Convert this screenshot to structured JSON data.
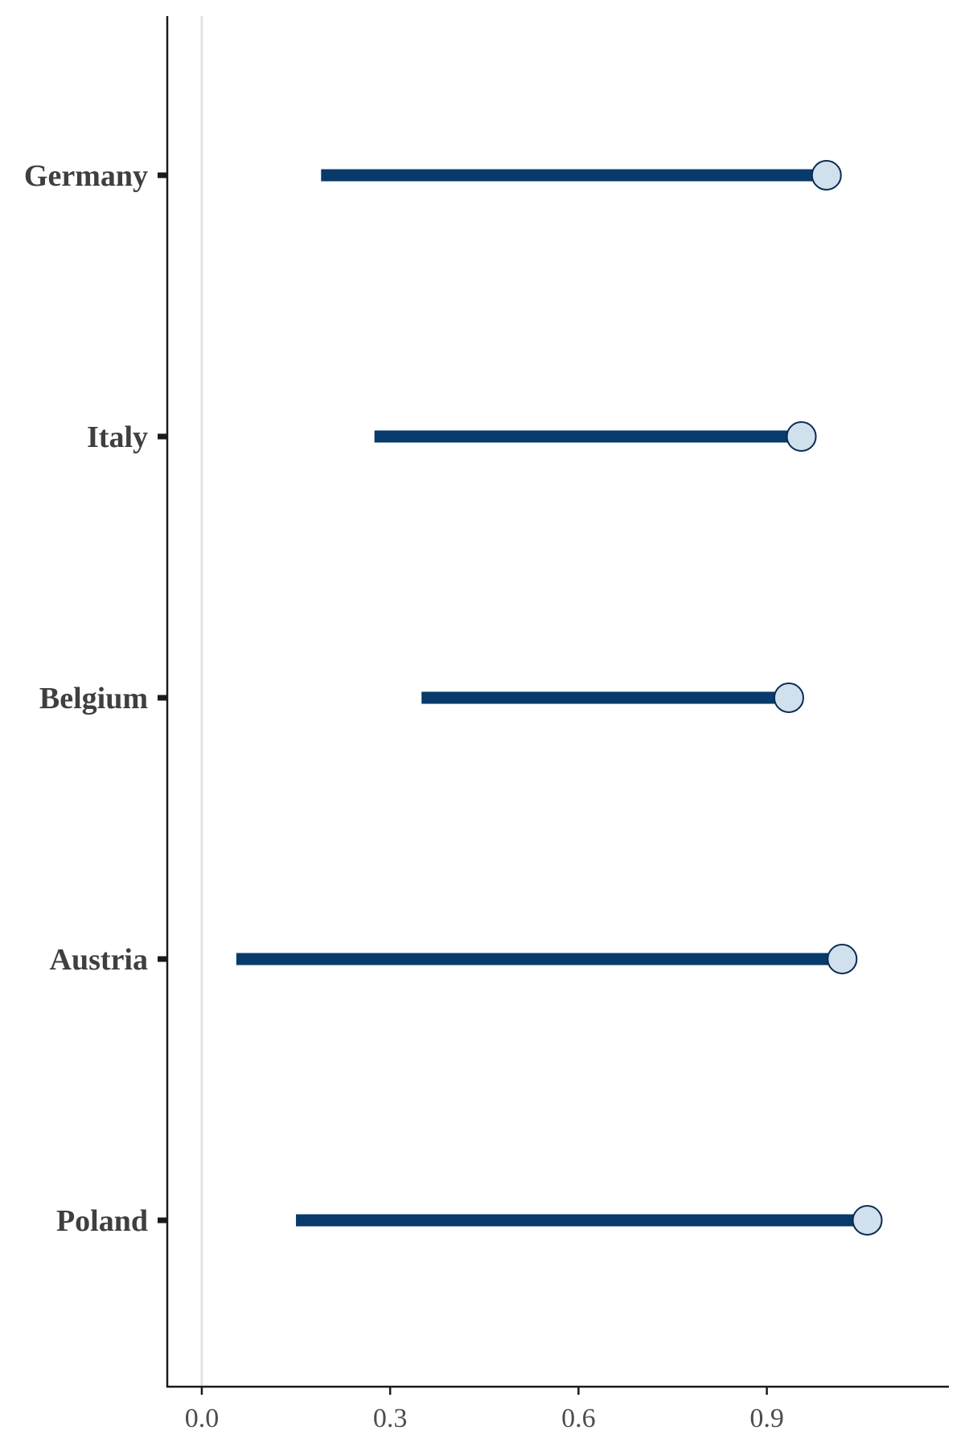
{
  "chart_data": {
    "type": "dumbbell",
    "title": "",
    "xlabel": "",
    "ylabel": "",
    "categories": [
      "Germany",
      "Italy",
      "Belgium",
      "Austria",
      "Poland"
    ],
    "series": [
      {
        "values_start": [
          0.19,
          0.275,
          0.35,
          0.055,
          0.15
        ],
        "values_end": [
          0.995,
          0.955,
          0.935,
          1.02,
          1.06
        ]
      }
    ],
    "xlim": [
      -0.055,
      1.19
    ],
    "xticks": [
      0.0,
      0.3,
      0.6,
      0.9
    ],
    "xtick_labels": [
      "0.0",
      "0.3",
      "0.6",
      "0.9"
    ],
    "reference_line": 0.0,
    "grid": false,
    "colors": {
      "segment": "#083a6b",
      "point_fill": "#d0e0ec",
      "point_stroke": "#0a2a55",
      "reference_line": "#e2e2e2",
      "axis": "#1a1a1a",
      "label_text": "#3f3f3f"
    }
  }
}
